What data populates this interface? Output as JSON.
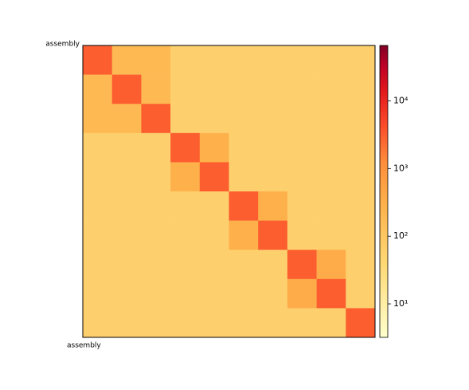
{
  "chart_data": {
    "type": "heatmap",
    "xlabel": "assembly",
    "ylabel": "assembly",
    "colormap": "YlOrRd",
    "log_scale": true,
    "clim": [
      3.2,
      66000
    ],
    "cticks": [
      {
        "value": 10,
        "label": "10¹"
      },
      {
        "value": 100,
        "label": "10²"
      },
      {
        "value": 1000,
        "label": "10³"
      },
      {
        "value": 10000,
        "label": "10⁴"
      }
    ],
    "matrix": [
      [
        3000,
        200,
        200,
        60,
        60,
        60,
        60,
        60,
        60,
        60
      ],
      [
        200,
        3000,
        200,
        60,
        60,
        60,
        60,
        60,
        60,
        60
      ],
      [
        200,
        200,
        3000,
        60,
        60,
        60,
        60,
        60,
        60,
        60
      ],
      [
        60,
        60,
        60,
        3000,
        300,
        60,
        60,
        60,
        60,
        60
      ],
      [
        60,
        60,
        60,
        300,
        3000,
        60,
        60,
        60,
        60,
        60
      ],
      [
        60,
        60,
        60,
        60,
        60,
        3000,
        300,
        60,
        60,
        60
      ],
      [
        60,
        60,
        60,
        60,
        60,
        300,
        3000,
        60,
        60,
        60
      ],
      [
        60,
        60,
        60,
        60,
        60,
        60,
        60,
        3000,
        350,
        60
      ],
      [
        60,
        60,
        60,
        60,
        60,
        60,
        60,
        350,
        3000,
        60
      ],
      [
        60,
        60,
        60,
        60,
        60,
        60,
        60,
        60,
        60,
        3000
      ]
    ]
  }
}
